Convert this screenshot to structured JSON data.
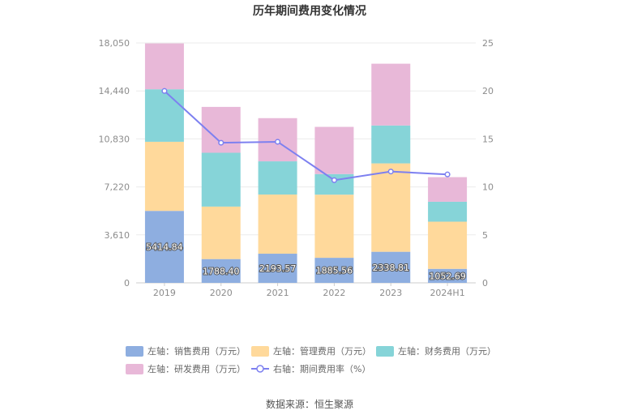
{
  "chart_data": {
    "type": "bar",
    "title": "历年期间费用变化情况",
    "categories": [
      "2019",
      "2020",
      "2021",
      "2022",
      "2023",
      "2024H1"
    ],
    "left_axis": {
      "ticks": [
        "0",
        "3,610",
        "7,220",
        "10,830",
        "14,440",
        "18,050"
      ],
      "ylim": [
        0,
        18050
      ]
    },
    "right_axis": {
      "ticks": [
        "0",
        "5",
        "10",
        "15",
        "20",
        "25"
      ],
      "ylim": [
        0,
        25
      ]
    },
    "series": [
      {
        "name": "左轴：销售费用（万元）",
        "color": "#8eaee0",
        "values": [
          5414.84,
          1788.4,
          2193.57,
          1885.56,
          2338.81,
          1052.69
        ],
        "labels": [
          "5414.84",
          "1788.40",
          "2193.57",
          "1885.56",
          "2338.81",
          "1052.69"
        ]
      },
      {
        "name": "左轴：管理费用（万元）",
        "color": "#ffd99b",
        "values": [
          5200,
          3950,
          4450,
          4750,
          6650,
          3550
        ]
      },
      {
        "name": "左轴：财务费用（万元）",
        "color": "#86d4d8",
        "values": [
          3950,
          4050,
          2500,
          1550,
          2850,
          1500
        ]
      },
      {
        "name": "左轴：研发费用（万元）",
        "color": "#e8b8d8",
        "values": [
          3450,
          3450,
          3250,
          3550,
          4650,
          1850
        ]
      }
    ],
    "line_series": {
      "name": "右轴：期间费用率（%）",
      "color": "#7d80f0",
      "values": [
        20.0,
        14.6,
        14.7,
        10.7,
        11.6,
        11.3
      ]
    },
    "legend_position": "bottom",
    "grid": true
  },
  "source": "数据来源：恒生聚源"
}
